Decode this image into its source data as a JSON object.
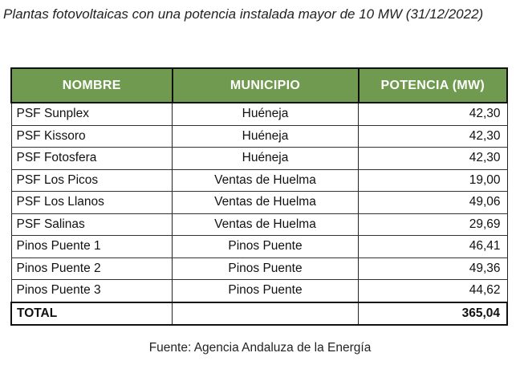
{
  "title": "Plantas fotovoltaicas con una potencia instalada mayor de 10 MW (31/12/2022)",
  "table": {
    "headers": [
      "NOMBRE",
      "MUNICIPIO",
      "POTENCIA (MW)"
    ],
    "rows": [
      [
        "PSF Sunplex",
        "Huéneja",
        "42,30"
      ],
      [
        "PSF Kissoro",
        "Huéneja",
        "42,30"
      ],
      [
        "PSF Fotosfera",
        "Huéneja",
        "42,30"
      ],
      [
        "PSF Los Picos",
        "Ventas de Huelma",
        "19,00"
      ],
      [
        "PSF Los Llanos",
        "Ventas de Huelma",
        "49,06"
      ],
      [
        "PSF Salinas",
        "Ventas de Huelma",
        "29,69"
      ],
      [
        "Pinos Puente 1",
        "Pinos Puente",
        "46,41"
      ],
      [
        "Pinos Puente 2",
        "Pinos Puente",
        "49,36"
      ],
      [
        "Pinos Puente 3",
        "Pinos Puente",
        "44,62"
      ]
    ],
    "total": {
      "label": "TOTAL",
      "municipio": "",
      "value": "365,04"
    }
  },
  "source": "Fuente: Agencia Andaluza de la Energía",
  "colors": {
    "header_bg": "#6f9a4f",
    "header_text": "#ffffff"
  }
}
